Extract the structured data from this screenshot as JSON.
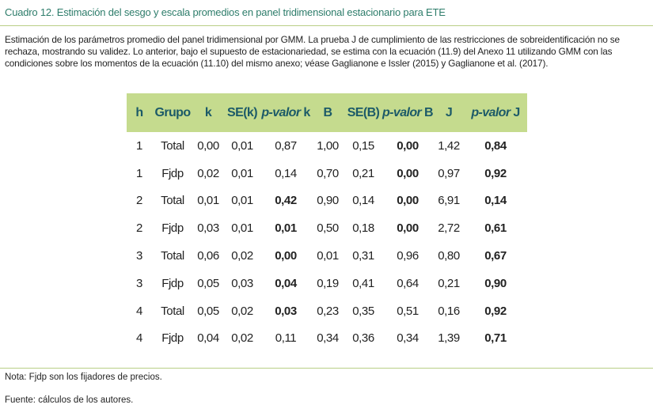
{
  "header": {
    "title": "Cuadro 12. Estimación del sesgo y escala promedios en panel tridimensional estacionario para ETE"
  },
  "description": "Estimación de los parámetros promedio del panel tridimensional por GMM. La prueba J de cumplimiento de las restricciones de sobreidentificación no se rechaza, mostrando su validez. Lo anterior, bajo el supuesto de estacionariedad, se estima con la ecuación (11.9) del Anexo 11 utilizando GMM con las condiciones sobre los momentos de la ecuación (11.10) del mismo anexo; véase Gaglianone e Issler (2015) y Gaglianone et al. (2017).",
  "table": {
    "columns": [
      "h",
      "Grupo",
      "k",
      "SE(k)",
      {
        "italic": "p-valor",
        "text": "k"
      },
      "B",
      "SE(B)",
      {
        "italic": "p-valor",
        "text": "B"
      },
      "J",
      {
        "italic": "p-valor",
        "text": "J"
      }
    ],
    "rows": [
      [
        "1",
        "Total",
        "0,00",
        "0,01",
        "0,87",
        "1,00",
        "0,15",
        {
          "text": "0,00",
          "bold": true
        },
        "1,42",
        {
          "text": "0,84",
          "bold": true
        }
      ],
      [
        "1",
        "Fjdp",
        "0,02",
        "0,01",
        "0,14",
        "0,70",
        "0,21",
        {
          "text": "0,00",
          "bold": true
        },
        "0,97",
        {
          "text": "0,92",
          "bold": true
        }
      ],
      [
        "2",
        "Total",
        "0,01",
        "0,01",
        {
          "text": "0,42",
          "bold": true
        },
        "0,90",
        "0,14",
        {
          "text": "0,00",
          "bold": true
        },
        "6,91",
        {
          "text": "0,14",
          "bold": true
        }
      ],
      [
        "2",
        "Fjdp",
        "0,03",
        "0,01",
        {
          "text": "0,01",
          "bold": true
        },
        "0,50",
        "0,18",
        {
          "text": "0,00",
          "bold": true
        },
        "2,72",
        {
          "text": "0,61",
          "bold": true
        }
      ],
      [
        "3",
        "Total",
        "0,06",
        "0,02",
        {
          "text": "0,00",
          "bold": true
        },
        "0,01",
        "0,31",
        "0,96",
        "0,80",
        {
          "text": "0,67",
          "bold": true
        }
      ],
      [
        "3",
        "Fjdp",
        "0,05",
        "0,03",
        {
          "text": "0,04",
          "bold": true
        },
        "0,19",
        "0,41",
        "0,64",
        "0,21",
        {
          "text": "0,90",
          "bold": true
        }
      ],
      [
        "4",
        "Total",
        "0,05",
        "0,02",
        {
          "text": "0,03",
          "bold": true
        },
        "0,23",
        "0,35",
        "0,51",
        "0,16",
        {
          "text": "0,92",
          "bold": true
        }
      ],
      [
        "4",
        "Fjdp",
        "0,04",
        "0,02",
        "0,11",
        "0,34",
        "0,36",
        "0,34",
        "1,39",
        {
          "text": "0,71",
          "bold": true
        }
      ]
    ]
  },
  "notes": [
    "Nota: Fjdp son los fijadores de precios.",
    "Fuente: cálculos de los autores."
  ]
}
